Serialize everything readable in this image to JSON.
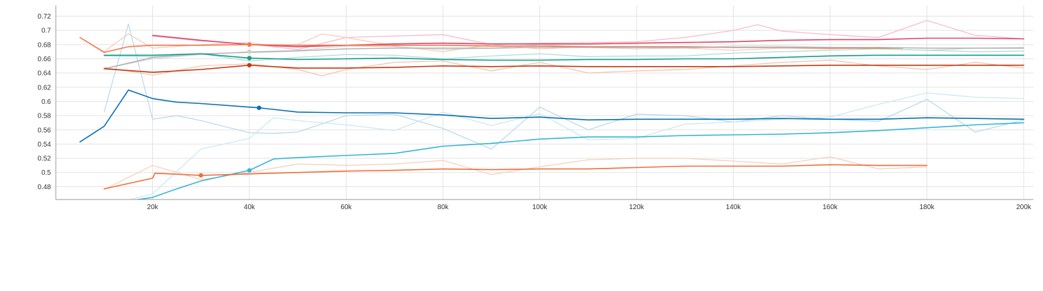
{
  "chart_data": {
    "type": "line",
    "title": "",
    "xlabel": "",
    "ylabel": "",
    "xlim": [
      0,
      202000
    ],
    "ylim": [
      0.462,
      0.735
    ],
    "grid": true,
    "legend": "none",
    "x_ticks": [
      20000,
      40000,
      60000,
      80000,
      100000,
      120000,
      140000,
      160000,
      180000,
      200000
    ],
    "x_tick_labels": [
      "20k",
      "40k",
      "60k",
      "80k",
      "100k",
      "120k",
      "140k",
      "160k",
      "180k",
      "200k"
    ],
    "y_ticks": [
      0.48,
      0.5,
      0.52,
      0.54,
      0.56,
      0.58,
      0.6,
      0.62,
      0.64,
      0.66,
      0.68,
      0.7,
      0.72
    ],
    "y_tick_labels": [
      "0.48",
      "0.5",
      "0.52",
      "0.54",
      "0.56",
      "0.58",
      "0.6",
      "0.62",
      "0.64",
      "0.66",
      "0.68",
      "0.7",
      "0.72"
    ],
    "series": [
      {
        "color": "#f7b7c6",
        "width": 1.2,
        "kind": "raw",
        "x": [
          20000,
          30000,
          40000,
          50000,
          60000,
          70000,
          80000,
          90000,
          100000,
          110000,
          120000,
          130000,
          140000,
          145000,
          150000,
          160000,
          170000,
          180000,
          190000,
          200000
        ],
        "y": [
          0.692,
          0.685,
          0.681,
          0.673,
          0.69,
          0.692,
          0.694,
          0.68,
          0.682,
          0.683,
          0.684,
          0.69,
          0.7,
          0.708,
          0.699,
          0.694,
          0.69,
          0.714,
          0.693,
          0.688
        ]
      },
      {
        "color": "#f7c8b5",
        "width": 1.2,
        "kind": "raw",
        "x": [
          5000,
          10000,
          15000,
          20000,
          30000,
          40000,
          45000,
          50000,
          55000,
          60000,
          70000,
          80000,
          90000,
          100000,
          110000,
          120000,
          130000,
          140000,
          150000,
          160000,
          170000,
          175000
        ],
        "y": [
          0.69,
          0.67,
          0.695,
          0.675,
          0.68,
          0.683,
          0.678,
          0.68,
          0.695,
          0.69,
          0.678,
          0.67,
          0.68,
          0.674,
          0.677,
          0.676,
          0.675,
          0.672,
          0.675,
          0.674,
          0.676,
          0.675
        ]
      },
      {
        "color": "#d6d6d6",
        "width": 1.2,
        "kind": "raw",
        "x": [
          10000,
          20000,
          30000,
          40000,
          50000,
          60000,
          70000,
          80000,
          90000,
          100000,
          110000,
          120000,
          130000,
          140000,
          150000,
          160000,
          170000,
          180000,
          190000,
          200000
        ],
        "y": [
          0.646,
          0.66,
          0.666,
          0.67,
          0.672,
          0.678,
          0.677,
          0.673,
          0.675,
          0.68,
          0.676,
          0.674,
          0.675,
          0.678,
          0.678,
          0.676,
          0.674,
          0.672,
          0.675,
          0.676
        ]
      },
      {
        "color": "#a8ddd6",
        "width": 1.2,
        "kind": "raw",
        "x": [
          10000,
          20000,
          30000,
          40000,
          50000,
          60000,
          70000,
          80000,
          90000,
          100000,
          110000,
          120000,
          130000,
          140000,
          150000,
          160000,
          170000,
          180000,
          190000,
          200000
        ],
        "y": [
          0.664,
          0.663,
          0.667,
          0.657,
          0.662,
          0.666,
          0.665,
          0.66,
          0.664,
          0.667,
          0.663,
          0.664,
          0.664,
          0.668,
          0.67,
          0.672,
          0.674,
          0.672,
          0.67,
          0.671
        ]
      },
      {
        "color": "#f4c0ac",
        "width": 1.2,
        "kind": "raw",
        "x": [
          10000,
          20000,
          30000,
          40000,
          50000,
          55000,
          60000,
          70000,
          80000,
          90000,
          100000,
          110000,
          120000,
          130000,
          140000,
          150000,
          160000,
          170000,
          180000,
          190000,
          200000
        ],
        "y": [
          0.648,
          0.637,
          0.65,
          0.653,
          0.645,
          0.636,
          0.645,
          0.655,
          0.657,
          0.643,
          0.655,
          0.64,
          0.643,
          0.645,
          0.65,
          0.655,
          0.658,
          0.65,
          0.645,
          0.655,
          0.647
        ]
      },
      {
        "color": "#b4d8ea",
        "width": 1.2,
        "kind": "raw",
        "x": [
          10000,
          15000,
          20000,
          25000,
          30000,
          40000,
          45000,
          50000,
          60000,
          70000,
          80000,
          90000,
          100000,
          110000,
          120000,
          130000,
          140000,
          150000,
          160000,
          170000,
          180000,
          190000,
          200000
        ],
        "y": [
          0.585,
          0.709,
          0.575,
          0.58,
          0.573,
          0.556,
          0.555,
          0.557,
          0.58,
          0.582,
          0.562,
          0.533,
          0.592,
          0.56,
          0.582,
          0.58,
          0.571,
          0.58,
          0.575,
          0.572,
          0.603,
          0.557,
          0.574
        ]
      },
      {
        "color": "#c8e7f2",
        "width": 1.2,
        "kind": "raw",
        "x": [
          10000,
          20000,
          30000,
          40000,
          45000,
          50000,
          60000,
          70000,
          80000,
          90000,
          100000,
          110000,
          120000,
          130000,
          140000,
          150000,
          160000,
          170000,
          180000,
          190000,
          200000
        ],
        "y": [
          0.452,
          0.47,
          0.533,
          0.548,
          0.577,
          0.573,
          0.567,
          0.559,
          0.585,
          0.566,
          0.583,
          0.546,
          0.548,
          0.568,
          0.571,
          0.575,
          0.578,
          0.596,
          0.612,
          0.606,
          0.604
        ]
      },
      {
        "color": "#f7cdb9",
        "width": 1.2,
        "kind": "raw",
        "x": [
          10000,
          20000,
          30000,
          40000,
          50000,
          60000,
          70000,
          80000,
          90000,
          100000,
          110000,
          120000,
          130000,
          140000,
          150000,
          160000,
          170000,
          180000
        ],
        "y": [
          0.476,
          0.51,
          0.49,
          0.5,
          0.512,
          0.51,
          0.512,
          0.517,
          0.497,
          0.508,
          0.518,
          0.52,
          0.52,
          0.516,
          0.512,
          0.522,
          0.505,
          0.508
        ]
      },
      {
        "color": "#e0436a",
        "width": 1.6,
        "kind": "smoothed",
        "x": [
          20000,
          30000,
          40000,
          50000,
          60000,
          70000,
          80000,
          90000,
          100000,
          110000,
          120000,
          130000,
          140000,
          150000,
          160000,
          170000,
          180000,
          190000,
          200000
        ],
        "y": [
          0.693,
          0.686,
          0.68,
          0.677,
          0.679,
          0.681,
          0.682,
          0.681,
          0.681,
          0.681,
          0.682,
          0.683,
          0.684,
          0.686,
          0.687,
          0.687,
          0.689,
          0.689,
          0.688
        ]
      },
      {
        "color": "#f07b4f",
        "width": 1.6,
        "kind": "smoothed",
        "x": [
          5000,
          10000,
          15000,
          20000,
          30000,
          40000,
          50000,
          60000,
          70000,
          80000,
          90000,
          100000,
          110000,
          120000,
          130000,
          140000,
          150000,
          160000,
          170000,
          175000
        ],
        "y": [
          0.69,
          0.669,
          0.677,
          0.679,
          0.679,
          0.68,
          0.679,
          0.679,
          0.679,
          0.679,
          0.678,
          0.678,
          0.677,
          0.677,
          0.677,
          0.676,
          0.676,
          0.675,
          0.675,
          0.675
        ]
      },
      {
        "color": "#b0b0b0",
        "width": 1.4,
        "kind": "smoothed",
        "x": [
          10000,
          20000,
          30000,
          40000,
          50000,
          60000,
          70000,
          80000,
          90000,
          100000,
          110000,
          120000,
          130000,
          140000,
          150000,
          160000,
          170000,
          180000,
          190000,
          200000
        ],
        "y": [
          0.646,
          0.662,
          0.667,
          0.669,
          0.671,
          0.674,
          0.675,
          0.675,
          0.675,
          0.676,
          0.676,
          0.676,
          0.676,
          0.676,
          0.676,
          0.676,
          0.676,
          0.675,
          0.675,
          0.675
        ]
      },
      {
        "color": "#139c8c",
        "width": 1.6,
        "kind": "smoothed",
        "x": [
          10000,
          20000,
          30000,
          40000,
          50000,
          60000,
          70000,
          80000,
          90000,
          100000,
          110000,
          120000,
          130000,
          140000,
          150000,
          160000,
          170000,
          180000,
          190000,
          200000
        ],
        "y": [
          0.665,
          0.665,
          0.667,
          0.661,
          0.659,
          0.66,
          0.661,
          0.659,
          0.658,
          0.658,
          0.659,
          0.659,
          0.66,
          0.66,
          0.662,
          0.664,
          0.665,
          0.665,
          0.665,
          0.665
        ]
      },
      {
        "color": "#c2390f",
        "width": 1.6,
        "kind": "smoothed",
        "x": [
          10000,
          20000,
          30000,
          40000,
          50000,
          60000,
          70000,
          80000,
          90000,
          100000,
          110000,
          120000,
          130000,
          140000,
          150000,
          160000,
          170000,
          180000,
          190000,
          200000
        ],
        "y": [
          0.646,
          0.641,
          0.645,
          0.651,
          0.647,
          0.647,
          0.648,
          0.65,
          0.649,
          0.65,
          0.649,
          0.649,
          0.649,
          0.649,
          0.65,
          0.651,
          0.651,
          0.651,
          0.651,
          0.651
        ]
      },
      {
        "color": "#0a6fb0",
        "width": 1.6,
        "kind": "smoothed",
        "x": [
          5000,
          10000,
          15000,
          20000,
          25000,
          30000,
          40000,
          42000,
          50000,
          60000,
          70000,
          80000,
          90000,
          100000,
          110000,
          120000,
          130000,
          140000,
          150000,
          160000,
          170000,
          180000,
          190000,
          200000
        ],
        "y": [
          0.543,
          0.565,
          0.616,
          0.604,
          0.599,
          0.597,
          0.592,
          0.591,
          0.585,
          0.584,
          0.584,
          0.581,
          0.576,
          0.578,
          0.574,
          0.575,
          0.575,
          0.575,
          0.576,
          0.575,
          0.575,
          0.577,
          0.576,
          0.575
        ]
      },
      {
        "color": "#35b5d6",
        "width": 1.6,
        "kind": "smoothed",
        "x": [
          13000,
          20000,
          25000,
          30000,
          40000,
          45000,
          50000,
          60000,
          70000,
          80000,
          90000,
          100000,
          110000,
          120000,
          130000,
          140000,
          150000,
          160000,
          170000,
          180000,
          190000,
          200000
        ],
        "y": [
          0.458,
          0.465,
          0.477,
          0.488,
          0.503,
          0.519,
          0.521,
          0.524,
          0.527,
          0.537,
          0.541,
          0.547,
          0.55,
          0.55,
          0.552,
          0.553,
          0.554,
          0.556,
          0.559,
          0.563,
          0.567,
          0.57
        ]
      },
      {
        "color": "#f06d3a",
        "width": 1.6,
        "kind": "smoothed",
        "x": [
          10000,
          20000,
          20500,
          30000,
          40000,
          50000,
          60000,
          70000,
          80000,
          90000,
          100000,
          110000,
          120000,
          130000,
          140000,
          150000,
          160000,
          170000,
          180000
        ],
        "y": [
          0.477,
          0.492,
          0.499,
          0.496,
          0.498,
          0.5,
          0.502,
          0.503,
          0.505,
          0.504,
          0.505,
          0.505,
          0.507,
          0.509,
          0.509,
          0.509,
          0.511,
          0.51,
          0.51
        ]
      }
    ],
    "markers": [
      {
        "color": "#f07b4f",
        "x": 40000,
        "y": 0.68
      },
      {
        "color": "#cfcfcf",
        "x": 40000,
        "y": 0.67
      },
      {
        "color": "#139c8c",
        "x": 40000,
        "y": 0.661
      },
      {
        "color": "#c2390f",
        "x": 40000,
        "y": 0.651
      },
      {
        "color": "#0a6fb0",
        "x": 42000,
        "y": 0.591
      },
      {
        "color": "#35b5d6",
        "x": 40000,
        "y": 0.503
      },
      {
        "color": "#f06d3a",
        "x": 30000,
        "y": 0.496
      }
    ]
  }
}
